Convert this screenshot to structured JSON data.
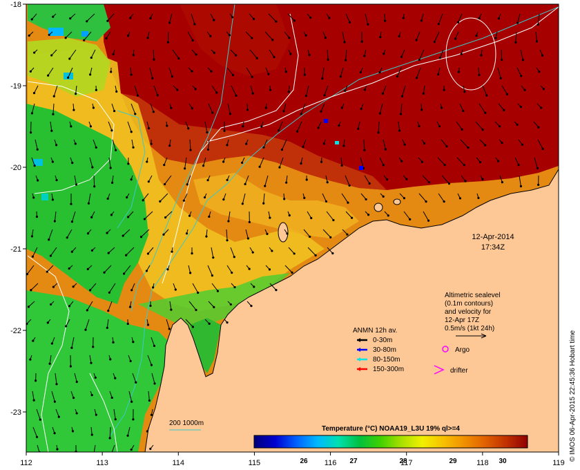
{
  "axes": {
    "lon_ticks": [
      "112",
      "113",
      "114",
      "115",
      "116",
      "117",
      "118",
      "119"
    ],
    "lat_ticks": [
      "-18",
      "-19",
      "-20",
      "-21",
      "-22",
      "-23"
    ]
  },
  "date_label": {
    "date": "12-Apr-2014",
    "time": "17:34Z"
  },
  "altimetry_note": {
    "lines": [
      "Altimetric sealevel",
      "(0.1m contours)",
      "and velocity for",
      "12-Apr 17Z",
      "0.5m/s (1kt 24h)"
    ]
  },
  "anmn_legend": {
    "title": "ANMN 12h av.",
    "items": [
      {
        "label": "0-30m",
        "color": "#000000"
      },
      {
        "label": "30-80m",
        "color": "#0000ff"
      },
      {
        "label": "80-150m",
        "color": "#00e5e5"
      },
      {
        "label": "150-300m",
        "color": "#ff0000"
      }
    ]
  },
  "markers": {
    "argo": {
      "label": "Argo",
      "color": "#ff00ff"
    },
    "drifter": {
      "label": "drifter",
      "color": "#ff00ff"
    }
  },
  "isobath": {
    "label": "200  1000m",
    "color": "#3cc9c9"
  },
  "colorbar": {
    "title": "Temperature (°C) NOAA19_L3U 19% ql>=4",
    "ticks": [
      "26",
      "27",
      "28",
      "29",
      "30"
    ],
    "vmin": 25.0,
    "vmax": 30.5,
    "stops": [
      "#00007a",
      "#0000d0",
      "#0060ff",
      "#00b8ff",
      "#00e0b0",
      "#00c040",
      "#40d000",
      "#a8e000",
      "#f0f000",
      "#f8c000",
      "#f09000",
      "#e06000",
      "#c03000",
      "#900000"
    ]
  },
  "credit": "© IMOS 06-Apr-2015 22:45:36 Hobart time",
  "colors": {
    "land": "#fdc896",
    "warm": "#a80000",
    "mid": "#e08a10",
    "cool": "#30c030"
  }
}
